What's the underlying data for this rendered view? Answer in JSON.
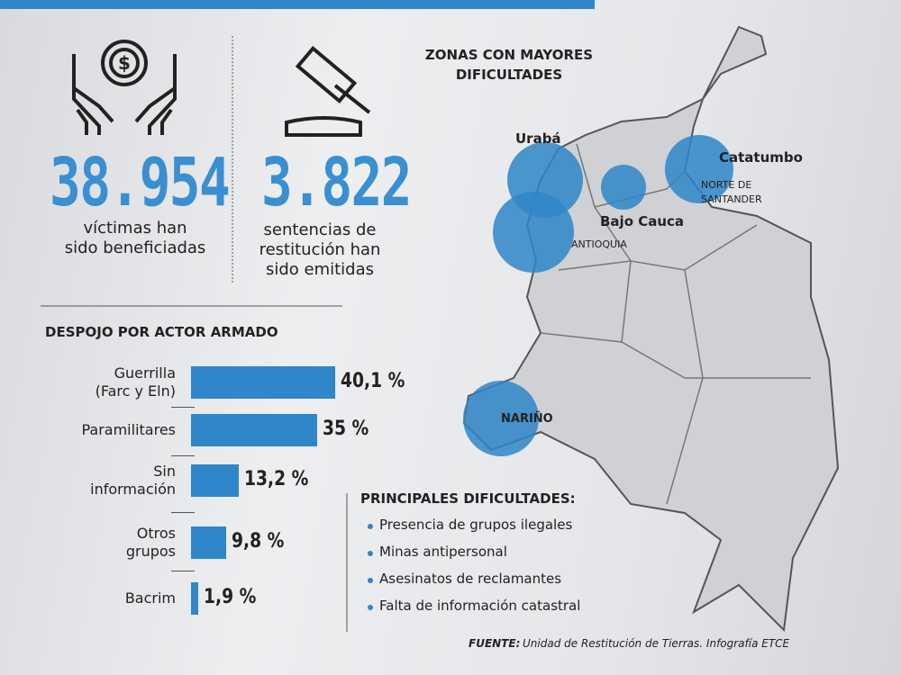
{
  "stats": [
    {
      "number": "38.954",
      "text": "víctimas han\nsido beneficiadas"
    },
    {
      "number": "3.822",
      "text": "sentencias de\nrestitución han\nsido emitidas"
    }
  ],
  "map": {
    "title": "ZONAS CON MAYORES\nDIFICULTADES",
    "labels": [
      "Urabá",
      "Bajo Cauca",
      "ANTIOQUIA",
      "Catatumbo",
      "NORTE DE\nSANTANDER",
      "NARIÑO"
    ]
  },
  "chart_data": {
    "type": "bar",
    "orientation": "horizontal",
    "title": "DESPOJO POR ACTOR ARMADO",
    "categories": [
      "Guerrilla\n(Farc y Eln)",
      "Paramilitares",
      "Sin\ninformación",
      "Otros\ngrupos",
      "Bacrim"
    ],
    "values": [
      40.1,
      35,
      13.2,
      9.8,
      1.9
    ],
    "value_labels": [
      "40,1 %",
      "35 %",
      "13,2 %",
      "9,8 %",
      "1,9 %"
    ],
    "color": "#2f86c8"
  },
  "difficulties": {
    "title": "PRINCIPALES DIFICULTADES:",
    "items": [
      "Presencia de grupos ilegales",
      "Minas antipersonal",
      "Asesinatos de reclamantes",
      "Falta de información catastral"
    ]
  },
  "source": {
    "label": "FUENTE:",
    "text": "Unidad de Restitución de Tierras. Infografía ETCE"
  }
}
